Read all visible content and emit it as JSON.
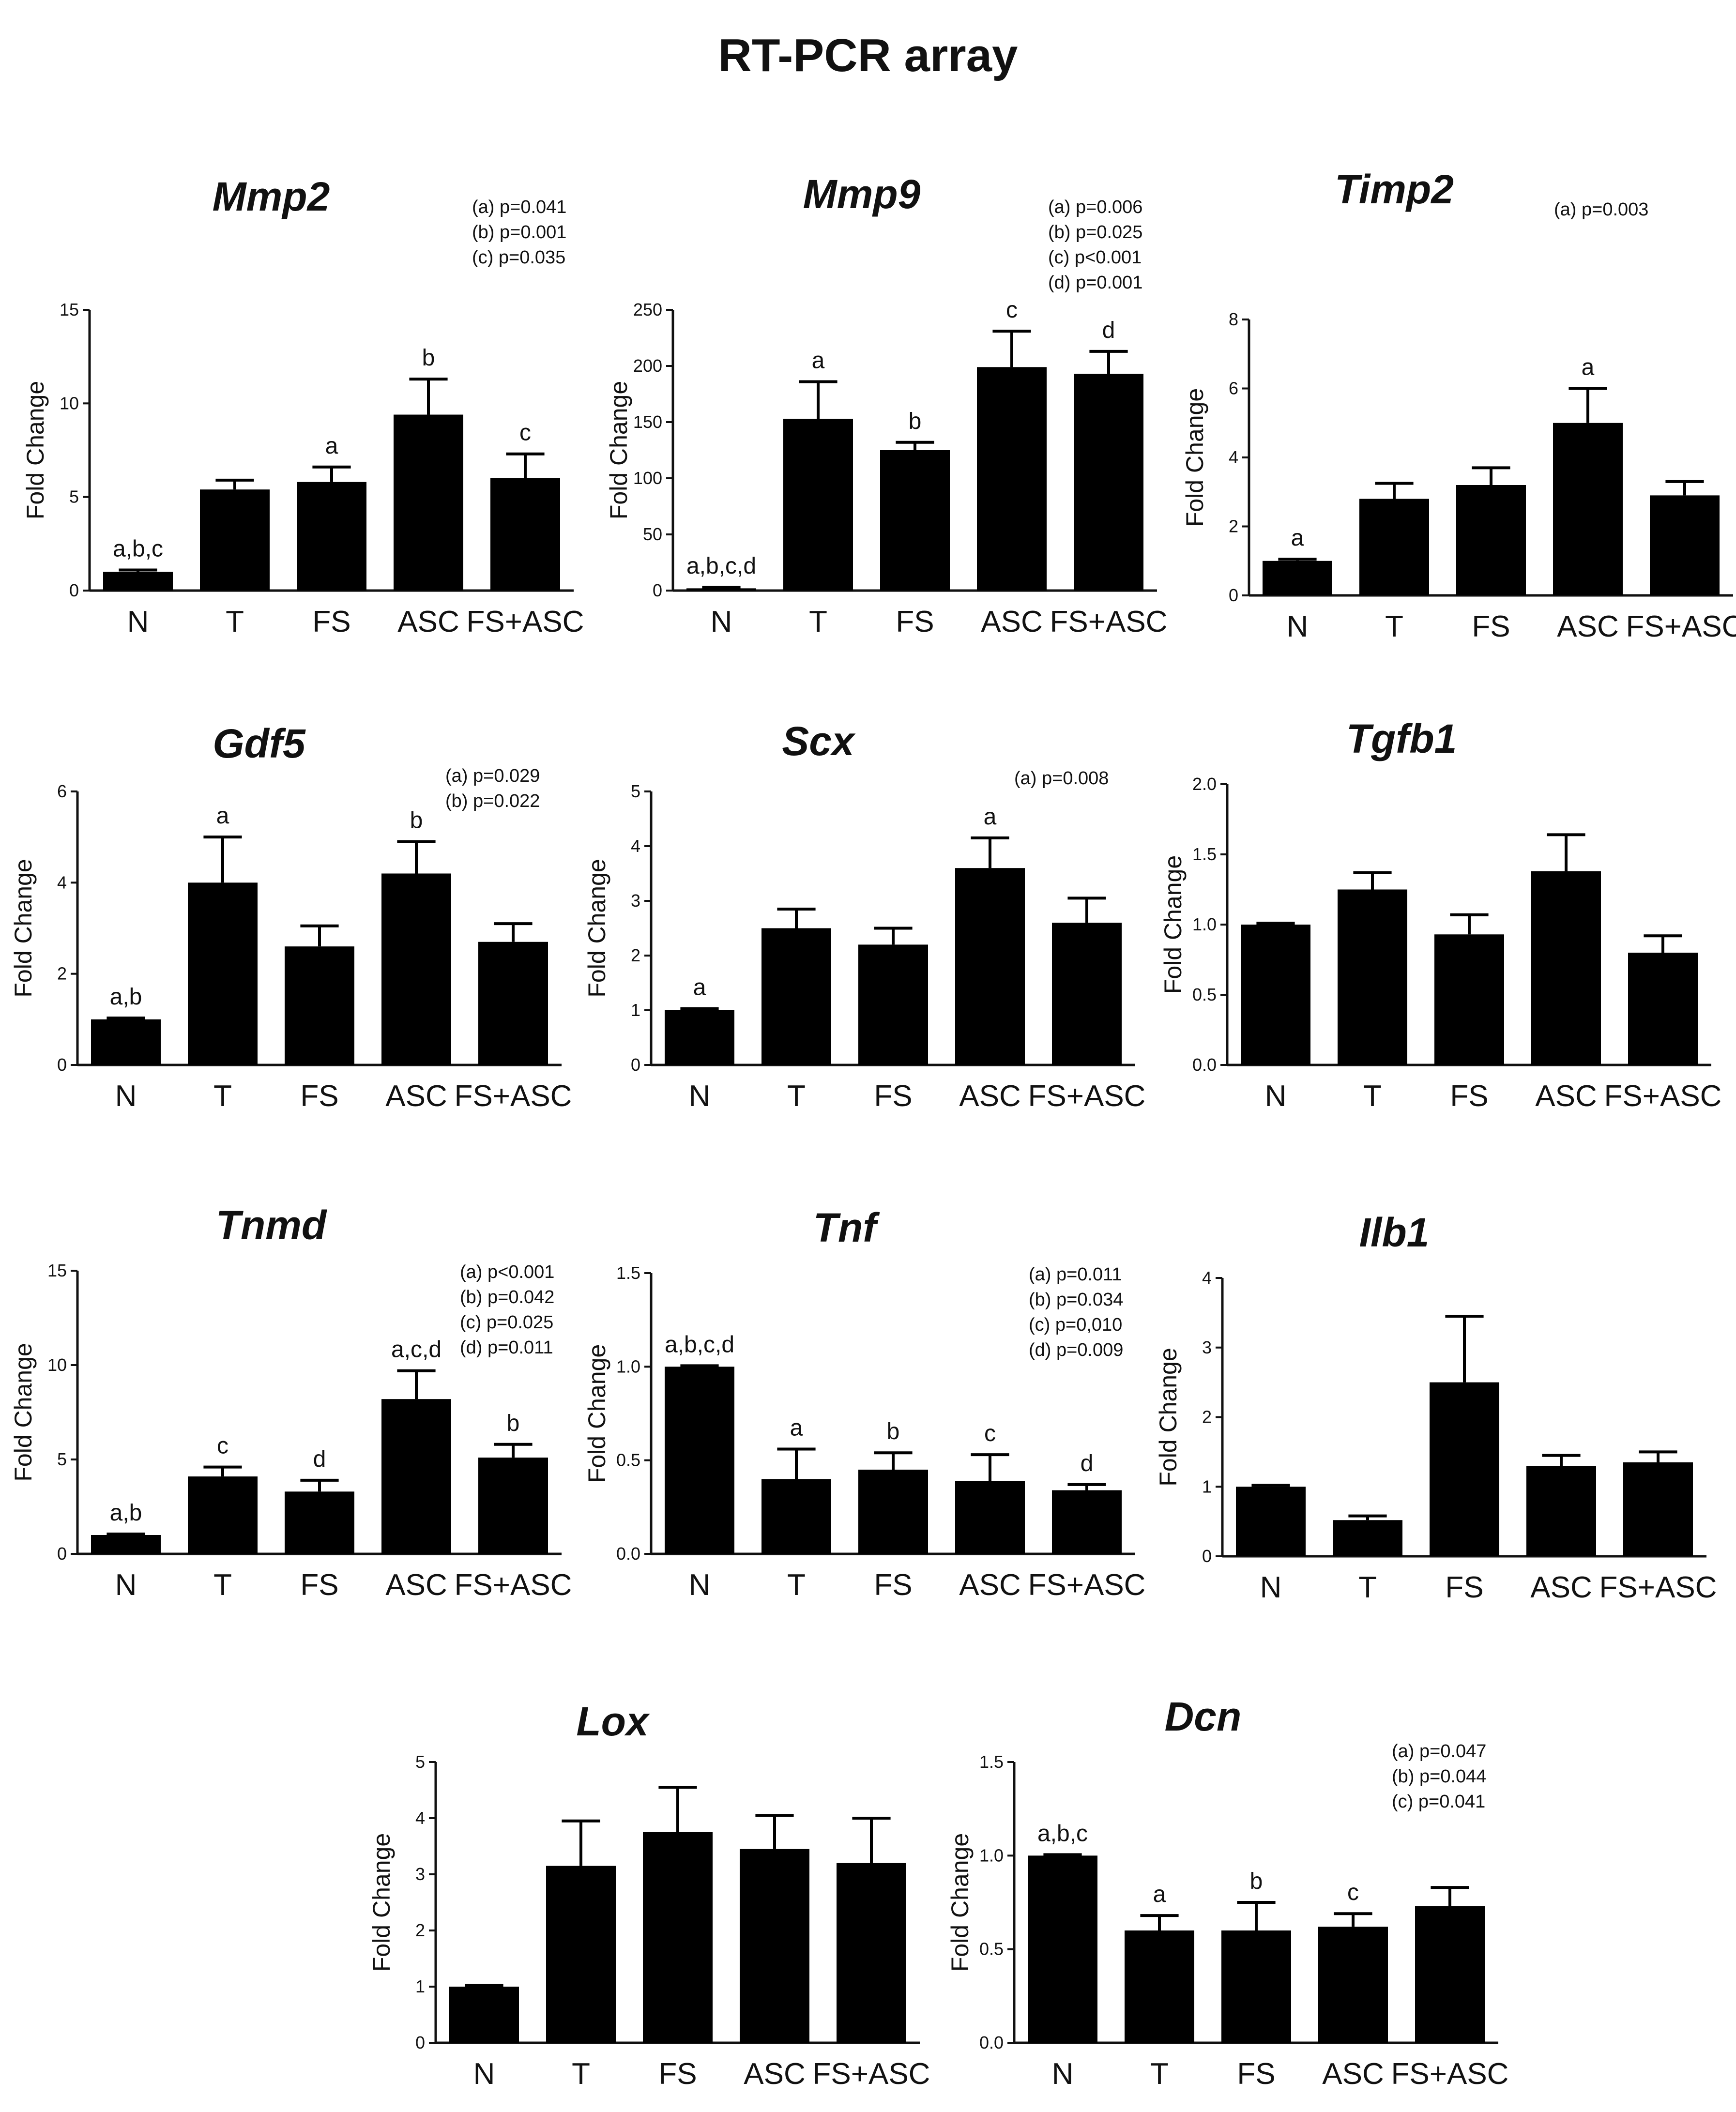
{
  "figure": {
    "title": "RT-PCR array"
  },
  "chart_data": [
    {
      "type": "bar",
      "title": "Mmp2",
      "ylabel": "Fold Change",
      "ylim": [
        0,
        15
      ],
      "yticks": [
        "0",
        "5",
        "10",
        "15"
      ],
      "categories": [
        "N",
        "T",
        "FS",
        "ASC",
        "FS+ASC"
      ],
      "values": [
        1.0,
        5.4,
        5.8,
        9.4,
        6.0
      ],
      "errors": [
        0.1,
        0.5,
        0.8,
        1.9,
        1.3
      ],
      "sig_labels": [
        "a,b,c",
        "",
        "a",
        "b",
        "c"
      ],
      "stats": [
        "(a) p=0.041",
        "(b) p=0.001",
        "(c) p=0.035"
      ]
    },
    {
      "type": "bar",
      "title": "Mmp9",
      "ylabel": "Fold Change",
      "ylim": [
        0,
        250
      ],
      "yticks": [
        "0",
        "50",
        "100",
        "150",
        "200",
        "250"
      ],
      "categories": [
        "N",
        "T",
        "FS",
        "ASC",
        "FS+ASC"
      ],
      "values": [
        2,
        153,
        125,
        199,
        193
      ],
      "errors": [
        1,
        33,
        7,
        32,
        20
      ],
      "sig_labels": [
        "a,b,c,d",
        "a",
        "b",
        "c",
        "d"
      ],
      "stats": [
        "(a) p=0.006",
        "(b) p=0.025",
        "(c) p<0.001",
        "(d) p=0.001"
      ]
    },
    {
      "type": "bar",
      "title": "Timp2",
      "ylabel": "Fold Change",
      "ylim": [
        0,
        8
      ],
      "yticks": [
        "0",
        "2",
        "4",
        "6",
        "8"
      ],
      "categories": [
        "N",
        "T",
        "FS",
        "ASC",
        "FS+ASC"
      ],
      "values": [
        1.0,
        2.8,
        3.2,
        5.0,
        2.9
      ],
      "errors": [
        0.05,
        0.45,
        0.5,
        1.0,
        0.4
      ],
      "sig_labels": [
        "a",
        "",
        "",
        "a",
        ""
      ],
      "stats": [
        "(a) p=0.003"
      ]
    },
    {
      "type": "bar",
      "title": "Gdf5",
      "ylabel": "Fold Change",
      "ylim": [
        0,
        6
      ],
      "yticks": [
        "0",
        "2",
        "4",
        "6"
      ],
      "categories": [
        "N",
        "T",
        "FS",
        "ASC",
        "FS+ASC"
      ],
      "values": [
        1.0,
        4.0,
        2.6,
        4.2,
        2.7
      ],
      "errors": [
        0.03,
        1.0,
        0.45,
        0.7,
        0.4
      ],
      "sig_labels": [
        "a,b",
        "a",
        "",
        "b",
        ""
      ],
      "stats": [
        "(a) p=0.029",
        "(b) p=0.022"
      ]
    },
    {
      "type": "bar",
      "title": "Scx",
      "ylabel": "Fold Change",
      "ylim": [
        0,
        5
      ],
      "yticks": [
        "0",
        "1",
        "2",
        "3",
        "4",
        "5"
      ],
      "categories": [
        "N",
        "T",
        "FS",
        "ASC",
        "FS+ASC"
      ],
      "values": [
        1.0,
        2.5,
        2.2,
        3.6,
        2.6
      ],
      "errors": [
        0.03,
        0.35,
        0.3,
        0.55,
        0.45
      ],
      "sig_labels": [
        "a",
        "",
        "",
        "a",
        ""
      ],
      "stats": [
        "(a) p=0.008"
      ]
    },
    {
      "type": "bar",
      "title": "Tgfb1",
      "ylabel": "Fold Change",
      "ylim": [
        0,
        2
      ],
      "yticks": [
        "0.0",
        "0.5",
        "1.0",
        "1.5",
        "2.0"
      ],
      "categories": [
        "N",
        "T",
        "FS",
        "ASC",
        "FS+ASC"
      ],
      "values": [
        1.0,
        1.25,
        0.93,
        1.38,
        0.8
      ],
      "errors": [
        0.01,
        0.12,
        0.14,
        0.26,
        0.12
      ],
      "sig_labels": [
        "",
        "",
        "",
        "",
        ""
      ],
      "stats": []
    },
    {
      "type": "bar",
      "title": "Tnmd",
      "ylabel": "Fold Change",
      "ylim": [
        0,
        15
      ],
      "yticks": [
        "0",
        "5",
        "10",
        "15"
      ],
      "categories": [
        "N",
        "T",
        "FS",
        "ASC",
        "FS+ASC"
      ],
      "values": [
        1.0,
        4.1,
        3.3,
        8.2,
        5.1
      ],
      "errors": [
        0.05,
        0.5,
        0.6,
        1.5,
        0.7
      ],
      "sig_labels": [
        "a,b",
        "c",
        "d",
        "a,c,d",
        "b"
      ],
      "stats": [
        "(a) p<0.001",
        "(b) p=0.042",
        "(c) p=0.025",
        "(d) p=0.011"
      ]
    },
    {
      "type": "bar",
      "title": "Tnf",
      "ylabel": "Fold Change",
      "ylim": [
        0,
        1.5
      ],
      "yticks": [
        "0.0",
        "0.5",
        "1.0",
        "1.5"
      ],
      "categories": [
        "N",
        "T",
        "FS",
        "ASC",
        "FS+ASC"
      ],
      "values": [
        1.0,
        0.4,
        0.45,
        0.39,
        0.34
      ],
      "errors": [
        0.005,
        0.16,
        0.09,
        0.14,
        0.03
      ],
      "sig_labels": [
        "a,b,c,d",
        "a",
        "b",
        "c",
        "d"
      ],
      "stats": [
        "(a) p=0.011",
        "(b) p=0.034",
        "(c) p=0,010",
        "(d) p=0.009"
      ]
    },
    {
      "type": "bar",
      "title": "Ilb1",
      "ylabel": "Fold Change",
      "ylim": [
        0,
        4
      ],
      "yticks": [
        "0",
        "1",
        "2",
        "3",
        "4"
      ],
      "categories": [
        "N",
        "T",
        "FS",
        "ASC",
        "FS+ASC"
      ],
      "values": [
        1.0,
        0.52,
        2.5,
        1.3,
        1.35
      ],
      "errors": [
        0.02,
        0.06,
        0.95,
        0.15,
        0.15
      ],
      "sig_labels": [
        "",
        "",
        "",
        "",
        ""
      ],
      "stats": []
    },
    {
      "type": "bar",
      "title": "Lox",
      "ylabel": "Fold Change",
      "ylim": [
        0,
        5
      ],
      "yticks": [
        "0",
        "1",
        "2",
        "3",
        "4",
        "5"
      ],
      "categories": [
        "N",
        "T",
        "FS",
        "ASC",
        "FS+ASC"
      ],
      "values": [
        1.0,
        3.15,
        3.75,
        3.45,
        3.2
      ],
      "errors": [
        0.02,
        0.8,
        0.8,
        0.6,
        0.8
      ],
      "sig_labels": [
        "",
        "",
        "",
        "",
        ""
      ],
      "stats": []
    },
    {
      "type": "bar",
      "title": "Dcn",
      "ylabel": "Fold Change",
      "ylim": [
        0,
        1.5
      ],
      "yticks": [
        "0.0",
        "0.5",
        "1.0",
        "1.5"
      ],
      "categories": [
        "N",
        "T",
        "FS",
        "ASC",
        "FS+ASC"
      ],
      "values": [
        1.0,
        0.6,
        0.6,
        0.62,
        0.73
      ],
      "errors": [
        0.005,
        0.08,
        0.15,
        0.07,
        0.1
      ],
      "sig_labels": [
        "a,b,c",
        "a",
        "b",
        "c",
        ""
      ],
      "stats": [
        "(a) p=0.047",
        "(b) p=0.044",
        "(c) p=0.041"
      ]
    }
  ]
}
